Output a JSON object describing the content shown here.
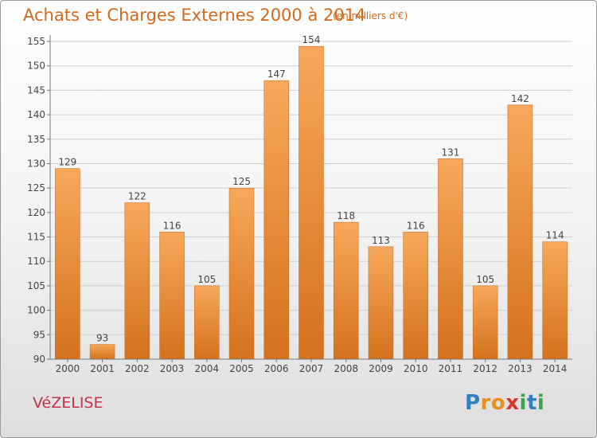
{
  "header": {
    "title": "Achats et Charges Externes 2000 à 2014",
    "subtitle": "(en milliers d'€)"
  },
  "footer": {
    "commune": "VéZELISE",
    "brand_letters": [
      {
        "ch": "P",
        "color": "#2f7fc1"
      },
      {
        "ch": "r",
        "color": "#e8901e"
      },
      {
        "ch": "o",
        "color": "#e8901e"
      },
      {
        "ch": "x",
        "color": "#d9342b"
      },
      {
        "ch": "i",
        "color": "#3aa64a"
      },
      {
        "ch": "t",
        "color": "#2f7fc1"
      },
      {
        "ch": "i",
        "color": "#3aa64a"
      }
    ]
  },
  "colors": {
    "bar_light": "#f7a85a",
    "bar_dark": "#d4711c",
    "accent": "#d2691e"
  },
  "chart_data": {
    "type": "bar",
    "categories": [
      "2000",
      "2001",
      "2002",
      "2003",
      "2004",
      "2005",
      "2006",
      "2007",
      "2008",
      "2009",
      "2010",
      "2011",
      "2012",
      "2013",
      "2014"
    ],
    "values": [
      129,
      93,
      122,
      116,
      105,
      125,
      147,
      154,
      118,
      113,
      116,
      131,
      105,
      142,
      114
    ],
    "yticks": [
      90,
      95,
      100,
      105,
      110,
      115,
      120,
      125,
      130,
      135,
      140,
      145,
      150,
      155
    ],
    "ylim": [
      90,
      155
    ],
    "grid": true,
    "legend": "none"
  }
}
